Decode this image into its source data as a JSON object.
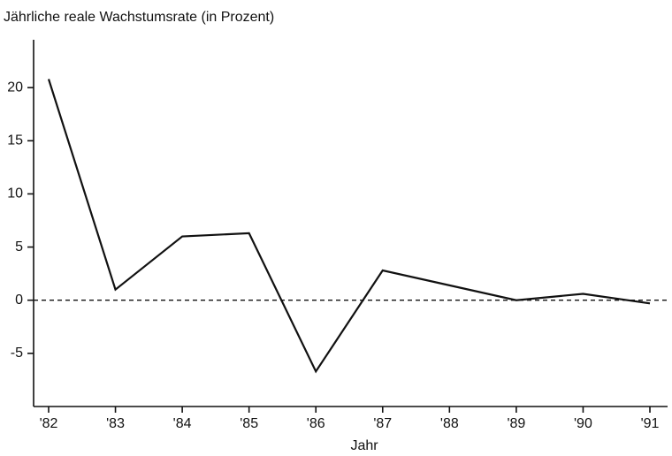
{
  "chart_data": {
    "type": "line",
    "title": "Jährliche reale Wachstumsrate (in Prozent)",
    "x_label": "Jahr",
    "categories": [
      "'82",
      "'83",
      "'84",
      "'85",
      "'86",
      "'87",
      "'88",
      "'89",
      "'90",
      "'91"
    ],
    "series": [
      {
        "name": "Wachstumsrate",
        "color": "#111111",
        "values": [
          20.8,
          1.0,
          6.0,
          6.3,
          -6.7,
          2.8,
          1.4,
          0.0,
          0.6,
          -0.3
        ]
      }
    ],
    "ylim": [
      -10,
      24.5
    ],
    "yticks": [
      -5,
      0,
      5,
      10,
      15,
      20
    ],
    "reference_line": 0,
    "grid": false,
    "legend": false
  }
}
